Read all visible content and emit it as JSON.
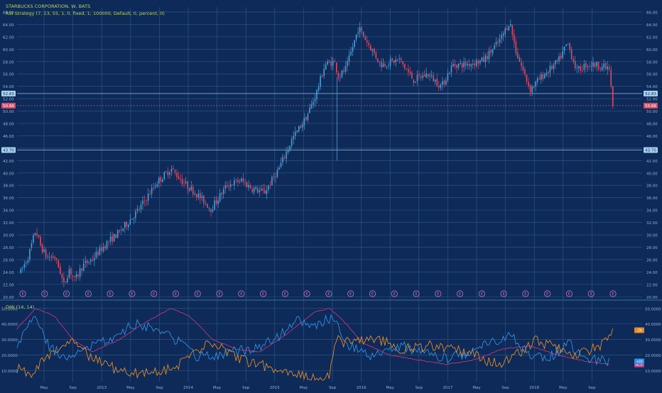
{
  "chart_title": "STARBUCKS CORPORATION, W, BATS",
  "strategy_label": "RSI Strategy (7, 13, 55, 1, 0, fixed, 1, 100000, Default, 0, percent, 0)",
  "indicator_label": "DMI (14, 14)",
  "colors": {
    "background": "#0e2a58",
    "grid": "#2f5a8a",
    "text": "#8fb3d9",
    "title": "#b9d35a",
    "up": "#4a9fd6",
    "down": "#e04a63",
    "adx": "#c0367f",
    "plus_di": "#2f8fe0",
    "minus_di": "#e08a2a",
    "earnings": "#c07ac0"
  },
  "chart_data": [
    {
      "type": "candlestick",
      "x_tick_labels": [
        "May",
        "Sep",
        "2013",
        "May",
        "Sep",
        "2014",
        "May",
        "Sep",
        "2015",
        "May",
        "Sep",
        "2016",
        "May",
        "Sep",
        "2017",
        "May",
        "Sep",
        "2018",
        "May",
        "Sep"
      ],
      "y_ticks": [
        20.0,
        22.0,
        24.0,
        26.0,
        28.0,
        30.0,
        32.0,
        34.0,
        36.0,
        38.0,
        40.0,
        42.0,
        44.0,
        46.0,
        48.0,
        50.0,
        52.0,
        54.0,
        56.0,
        58.0,
        60.0,
        62.0,
        64.0,
        66.0
      ],
      "ylim": [
        19.8,
        66.8
      ],
      "price_labels": [
        {
          "value": 52.83,
          "label": "52.83",
          "style": "price-line"
        },
        {
          "value": 50.88,
          "label": "50.88",
          "style": "last-price"
        },
        {
          "value": 43.7,
          "label": "43.70",
          "style": "price-line"
        }
      ],
      "anchor_points": [
        [
          2012.24,
          24.0
        ],
        [
          2012.32,
          26.5
        ],
        [
          2012.4,
          30.8
        ],
        [
          2012.45,
          28.3
        ],
        [
          2012.52,
          26.3
        ],
        [
          2012.6,
          26.5
        ],
        [
          2012.66,
          24.2
        ],
        [
          2012.7,
          21.8
        ],
        [
          2012.76,
          24.5
        ],
        [
          2012.82,
          22.6
        ],
        [
          2012.9,
          25.0
        ],
        [
          2013.0,
          26.0
        ],
        [
          2013.15,
          28.5
        ],
        [
          2013.3,
          30.5
        ],
        [
          2013.5,
          34.0
        ],
        [
          2013.7,
          38.5
        ],
        [
          2013.85,
          40.7
        ],
        [
          2014.0,
          38.2
        ],
        [
          2014.1,
          37.0
        ],
        [
          2014.28,
          34.2
        ],
        [
          2014.45,
          38.0
        ],
        [
          2014.6,
          38.8
        ],
        [
          2014.72,
          37.5
        ],
        [
          2014.85,
          36.8
        ],
        [
          2015.0,
          40.5
        ],
        [
          2015.15,
          45.5
        ],
        [
          2015.3,
          49.0
        ],
        [
          2015.4,
          52.5
        ],
        [
          2015.5,
          57.5
        ],
        [
          2015.6,
          58.0
        ],
        [
          2015.65,
          55.5
        ],
        [
          2015.73,
          57.0
        ],
        [
          2015.86,
          63.5
        ],
        [
          2016.0,
          60.0
        ],
        [
          2016.1,
          57.5
        ],
        [
          2016.3,
          58.3
        ],
        [
          2016.45,
          55.0
        ],
        [
          2016.6,
          56.0
        ],
        [
          2016.75,
          54.0
        ],
        [
          2016.87,
          57.5
        ],
        [
          2017.0,
          57.5
        ],
        [
          2017.2,
          58.2
        ],
        [
          2017.38,
          61.5
        ],
        [
          2017.48,
          64.5
        ],
        [
          2017.55,
          59.5
        ],
        [
          2017.7,
          53.5
        ],
        [
          2017.82,
          55.5
        ],
        [
          2018.0,
          58.0
        ],
        [
          2018.1,
          61.0
        ],
        [
          2018.2,
          56.5
        ],
        [
          2018.3,
          57.5
        ],
        [
          2018.4,
          57.5
        ],
        [
          2018.55,
          56.8
        ],
        [
          2018.582,
          50.88
        ]
      ],
      "earnings_marker_label": "E",
      "earnings_count": 28
    },
    {
      "type": "line",
      "title": "DMI (14, 14)",
      "y_ticks": [
        10.0,
        20.0,
        30.0,
        40.0,
        50.0
      ],
      "ylim": [
        3,
        54
      ],
      "series": [
        {
          "name": "ADX",
          "anchor_points": [
            [
              2012.2,
              37
            ],
            [
              2012.4,
              50
            ],
            [
              2012.6,
              45
            ],
            [
              2012.8,
              30
            ],
            [
              2013.0,
              22
            ],
            [
              2013.3,
              30
            ],
            [
              2013.6,
              42
            ],
            [
              2013.85,
              50
            ],
            [
              2014.05,
              45
            ],
            [
              2014.3,
              30
            ],
            [
              2014.55,
              24
            ],
            [
              2014.8,
              22
            ],
            [
              2015.1,
              34
            ],
            [
              2015.4,
              48
            ],
            [
              2015.55,
              50
            ],
            [
              2015.7,
              42
            ],
            [
              2015.9,
              28
            ],
            [
              2016.2,
              20
            ],
            [
              2016.5,
              17
            ],
            [
              2016.8,
              14
            ],
            [
              2017.1,
              17
            ],
            [
              2017.4,
              24
            ],
            [
              2017.7,
              26
            ],
            [
              2018.0,
              20
            ],
            [
              2018.3,
              16
            ],
            [
              2018.55,
              14
            ]
          ]
        },
        {
          "name": "+DI",
          "anchor_points": [
            [
              2012.2,
              28
            ],
            [
              2012.4,
              45
            ],
            [
              2012.55,
              25
            ],
            [
              2012.75,
              18
            ],
            [
              2012.95,
              24
            ],
            [
              2013.2,
              30
            ],
            [
              2013.45,
              40
            ],
            [
              2013.7,
              36
            ],
            [
              2013.9,
              30
            ],
            [
              2014.1,
              20
            ],
            [
              2014.3,
              18
            ],
            [
              2014.5,
              22
            ],
            [
              2014.75,
              24
            ],
            [
              2015.0,
              32
            ],
            [
              2015.2,
              42
            ],
            [
              2015.4,
              40
            ],
            [
              2015.6,
              44
            ],
            [
              2015.75,
              26
            ],
            [
              2016.0,
              20
            ],
            [
              2016.3,
              26
            ],
            [
              2016.55,
              22
            ],
            [
              2016.8,
              18
            ],
            [
              2017.0,
              20
            ],
            [
              2017.3,
              28
            ],
            [
              2017.5,
              32
            ],
            [
              2017.7,
              20
            ],
            [
              2017.9,
              18
            ],
            [
              2018.1,
              28
            ],
            [
              2018.3,
              18
            ],
            [
              2018.55,
              16
            ]
          ]
        },
        {
          "name": "-DI",
          "anchor_points": [
            [
              2012.2,
              12
            ],
            [
              2012.35,
              8
            ],
            [
              2012.5,
              18
            ],
            [
              2012.65,
              26
            ],
            [
              2012.8,
              30
            ],
            [
              2013.0,
              18
            ],
            [
              2013.3,
              10
            ],
            [
              2013.6,
              8
            ],
            [
              2013.9,
              12
            ],
            [
              2014.1,
              22
            ],
            [
              2014.3,
              28
            ],
            [
              2014.55,
              18
            ],
            [
              2014.8,
              14
            ],
            [
              2015.1,
              8
            ],
            [
              2015.4,
              5
            ],
            [
              2015.55,
              6
            ],
            [
              2015.62,
              30
            ],
            [
              2015.75,
              28
            ],
            [
              2016.0,
              32
            ],
            [
              2016.3,
              24
            ],
            [
              2016.6,
              26
            ],
            [
              2016.9,
              24
            ],
            [
              2017.1,
              20
            ],
            [
              2017.35,
              14
            ],
            [
              2017.55,
              20
            ],
            [
              2017.75,
              30
            ],
            [
              2018.0,
              24
            ],
            [
              2018.2,
              20
            ],
            [
              2018.45,
              26
            ],
            [
              2018.58,
              36
            ]
          ]
        }
      ],
      "value_badges": [
        {
          "name": "-DI",
          "value": 36
        },
        {
          "name": "ADX",
          "value": 14
        },
        {
          "name": "+DI",
          "value": 16
        }
      ]
    }
  ]
}
